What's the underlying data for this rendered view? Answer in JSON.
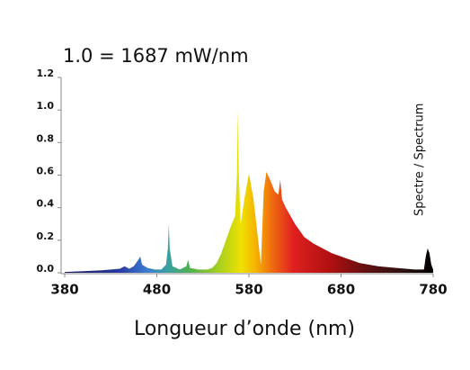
{
  "chart_data": {
    "type": "area",
    "title": "1.0 = 1687 mW/nm",
    "xlabel": "Longueur d’onde (nm)",
    "annotation": "Spectre / Spectrum",
    "xlim": [
      380,
      780
    ],
    "xticks": [
      380,
      480,
      580,
      680,
      780
    ],
    "ylim": [
      0,
      1.2
    ],
    "yticks": [
      {
        "value": 0,
        "label": "0.0"
      },
      0.2,
      0.4,
      0.6,
      0.8,
      {
        "value": 1,
        "label": "1.0"
      },
      1.2
    ],
    "x": [
      380,
      400,
      420,
      440,
      445,
      450,
      455,
      460,
      462,
      464,
      470,
      478,
      485,
      490,
      492,
      493,
      494,
      497,
      505,
      512,
      514,
      516,
      525,
      535,
      540,
      545,
      550,
      555,
      560,
      565,
      567,
      568,
      569,
      571,
      575,
      580,
      585,
      590,
      593,
      596,
      599,
      603,
      608,
      612,
      614,
      616,
      620,
      630,
      640,
      650,
      660,
      670,
      680,
      690,
      700,
      720,
      740,
      760,
      770,
      772,
      774,
      776,
      778,
      780
    ],
    "values": [
      0.005,
      0.01,
      0.015,
      0.025,
      0.04,
      0.025,
      0.04,
      0.08,
      0.1,
      0.05,
      0.03,
      0.02,
      0.02,
      0.05,
      0.15,
      0.3,
      0.15,
      0.04,
      0.02,
      0.04,
      0.08,
      0.03,
      0.02,
      0.02,
      0.03,
      0.06,
      0.12,
      0.2,
      0.28,
      0.35,
      0.6,
      1.0,
      0.6,
      0.3,
      0.45,
      0.61,
      0.45,
      0.2,
      0.05,
      0.5,
      0.62,
      0.57,
      0.5,
      0.48,
      0.57,
      0.45,
      0.4,
      0.3,
      0.22,
      0.18,
      0.15,
      0.12,
      0.1,
      0.08,
      0.06,
      0.04,
      0.03,
      0.02,
      0.02,
      0.1,
      0.15,
      0.12,
      0.05,
      0.02
    ]
  }
}
